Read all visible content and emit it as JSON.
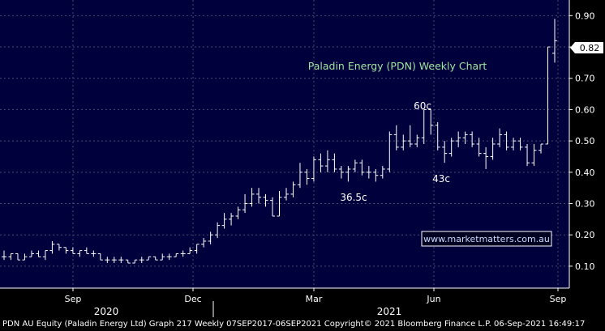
{
  "chart_data": {
    "type": "ohlc",
    "title": "Paladin Energy (PDN) Weekly Chart",
    "last_price_label": "0.82",
    "ylim": [
      0.03,
      0.95
    ],
    "y_ticks": [
      "0.10",
      "0.20",
      "0.30",
      "0.40",
      "0.50",
      "0.60",
      "0.70",
      "0.80",
      "0.90"
    ],
    "x_months": [
      "Sep",
      "Dec",
      "Mar",
      "Jun",
      "Sep"
    ],
    "x_years": [
      "2020",
      "2021"
    ],
    "annotations": [
      "60c",
      "43c",
      "36.5c"
    ],
    "watermark": "www.marketmatters.com.au",
    "colors": {
      "background": "#000000",
      "plot": "#00003c",
      "bars": "#ffffff",
      "grid": "#4a4a6e",
      "title": "#9fe89f",
      "watermark": "#c8d8ff"
    },
    "series": [
      {
        "o": 0.13,
        "h": 0.15,
        "l": 0.12,
        "c": 0.13
      },
      {
        "o": 0.13,
        "h": 0.14,
        "l": 0.12,
        "c": 0.14
      },
      {
        "o": 0.14,
        "h": 0.14,
        "l": 0.12,
        "c": 0.12
      },
      {
        "o": 0.12,
        "h": 0.14,
        "l": 0.12,
        "c": 0.13
      },
      {
        "o": 0.13,
        "h": 0.15,
        "l": 0.13,
        "c": 0.14
      },
      {
        "o": 0.14,
        "h": 0.15,
        "l": 0.13,
        "c": 0.13
      },
      {
        "o": 0.13,
        "h": 0.15,
        "l": 0.12,
        "c": 0.15
      },
      {
        "o": 0.15,
        "h": 0.18,
        "l": 0.14,
        "c": 0.17
      },
      {
        "o": 0.17,
        "h": 0.17,
        "l": 0.15,
        "c": 0.16
      },
      {
        "o": 0.16,
        "h": 0.16,
        "l": 0.14,
        "c": 0.15
      },
      {
        "o": 0.15,
        "h": 0.16,
        "l": 0.14,
        "c": 0.14
      },
      {
        "o": 0.14,
        "h": 0.15,
        "l": 0.13,
        "c": 0.15
      },
      {
        "o": 0.15,
        "h": 0.16,
        "l": 0.14,
        "c": 0.14
      },
      {
        "o": 0.14,
        "h": 0.15,
        "l": 0.13,
        "c": 0.14
      },
      {
        "o": 0.14,
        "h": 0.14,
        "l": 0.12,
        "c": 0.12
      },
      {
        "o": 0.12,
        "h": 0.13,
        "l": 0.11,
        "c": 0.12
      },
      {
        "o": 0.12,
        "h": 0.13,
        "l": 0.11,
        "c": 0.12
      },
      {
        "o": 0.12,
        "h": 0.13,
        "l": 0.11,
        "c": 0.12
      },
      {
        "o": 0.12,
        "h": 0.12,
        "l": 0.11,
        "c": 0.11
      },
      {
        "o": 0.11,
        "h": 0.12,
        "l": 0.11,
        "c": 0.12
      },
      {
        "o": 0.12,
        "h": 0.13,
        "l": 0.11,
        "c": 0.12
      },
      {
        "o": 0.12,
        "h": 0.13,
        "l": 0.12,
        "c": 0.13
      },
      {
        "o": 0.13,
        "h": 0.13,
        "l": 0.12,
        "c": 0.12
      },
      {
        "o": 0.12,
        "h": 0.14,
        "l": 0.12,
        "c": 0.13
      },
      {
        "o": 0.13,
        "h": 0.14,
        "l": 0.12,
        "c": 0.13
      },
      {
        "o": 0.13,
        "h": 0.14,
        "l": 0.13,
        "c": 0.14
      },
      {
        "o": 0.14,
        "h": 0.15,
        "l": 0.13,
        "c": 0.14
      },
      {
        "o": 0.14,
        "h": 0.16,
        "l": 0.14,
        "c": 0.15
      },
      {
        "o": 0.15,
        "h": 0.17,
        "l": 0.14,
        "c": 0.17
      },
      {
        "o": 0.17,
        "h": 0.19,
        "l": 0.16,
        "c": 0.18
      },
      {
        "o": 0.18,
        "h": 0.21,
        "l": 0.17,
        "c": 0.2
      },
      {
        "o": 0.2,
        "h": 0.24,
        "l": 0.19,
        "c": 0.23
      },
      {
        "o": 0.23,
        "h": 0.27,
        "l": 0.22,
        "c": 0.25
      },
      {
        "o": 0.25,
        "h": 0.27,
        "l": 0.23,
        "c": 0.26
      },
      {
        "o": 0.26,
        "h": 0.29,
        "l": 0.25,
        "c": 0.28
      },
      {
        "o": 0.28,
        "h": 0.33,
        "l": 0.27,
        "c": 0.3
      },
      {
        "o": 0.3,
        "h": 0.35,
        "l": 0.29,
        "c": 0.33
      },
      {
        "o": 0.33,
        "h": 0.35,
        "l": 0.3,
        "c": 0.32
      },
      {
        "o": 0.32,
        "h": 0.33,
        "l": 0.29,
        "c": 0.31
      },
      {
        "o": 0.31,
        "h": 0.32,
        "l": 0.26,
        "c": 0.26
      },
      {
        "o": 0.26,
        "h": 0.34,
        "l": 0.26,
        "c": 0.32
      },
      {
        "o": 0.32,
        "h": 0.35,
        "l": 0.31,
        "c": 0.33
      },
      {
        "o": 0.33,
        "h": 0.37,
        "l": 0.32,
        "c": 0.36
      },
      {
        "o": 0.36,
        "h": 0.43,
        "l": 0.35,
        "c": 0.4
      },
      {
        "o": 0.4,
        "h": 0.41,
        "l": 0.36,
        "c": 0.38
      },
      {
        "o": 0.38,
        "h": 0.45,
        "l": 0.37,
        "c": 0.44
      },
      {
        "o": 0.44,
        "h": 0.46,
        "l": 0.4,
        "c": 0.42
      },
      {
        "o": 0.42,
        "h": 0.47,
        "l": 0.4,
        "c": 0.44
      },
      {
        "o": 0.44,
        "h": 0.46,
        "l": 0.4,
        "c": 0.41
      },
      {
        "o": 0.41,
        "h": 0.42,
        "l": 0.38,
        "c": 0.4
      },
      {
        "o": 0.4,
        "h": 0.42,
        "l": 0.37,
        "c": 0.41
      },
      {
        "o": 0.41,
        "h": 0.44,
        "l": 0.4,
        "c": 0.43
      },
      {
        "o": 0.43,
        "h": 0.44,
        "l": 0.39,
        "c": 0.4
      },
      {
        "o": 0.4,
        "h": 0.42,
        "l": 0.38,
        "c": 0.4
      },
      {
        "o": 0.4,
        "h": 0.41,
        "l": 0.37,
        "c": 0.39
      },
      {
        "o": 0.39,
        "h": 0.42,
        "l": 0.38,
        "c": 0.41
      },
      {
        "o": 0.41,
        "h": 0.53,
        "l": 0.4,
        "c": 0.52
      },
      {
        "o": 0.52,
        "h": 0.55,
        "l": 0.47,
        "c": 0.48
      },
      {
        "o": 0.48,
        "h": 0.52,
        "l": 0.47,
        "c": 0.5
      },
      {
        "o": 0.5,
        "h": 0.55,
        "l": 0.48,
        "c": 0.49
      },
      {
        "o": 0.49,
        "h": 0.52,
        "l": 0.48,
        "c": 0.51
      },
      {
        "o": 0.51,
        "h": 0.6,
        "l": 0.49,
        "c": 0.6
      },
      {
        "o": 0.6,
        "h": 0.6,
        "l": 0.52,
        "c": 0.55
      },
      {
        "o": 0.55,
        "h": 0.56,
        "l": 0.47,
        "c": 0.48
      },
      {
        "o": 0.48,
        "h": 0.5,
        "l": 0.43,
        "c": 0.46
      },
      {
        "o": 0.46,
        "h": 0.51,
        "l": 0.45,
        "c": 0.5
      },
      {
        "o": 0.5,
        "h": 0.53,
        "l": 0.48,
        "c": 0.51
      },
      {
        "o": 0.51,
        "h": 0.53,
        "l": 0.49,
        "c": 0.52
      },
      {
        "o": 0.52,
        "h": 0.53,
        "l": 0.48,
        "c": 0.49
      },
      {
        "o": 0.49,
        "h": 0.51,
        "l": 0.45,
        "c": 0.46
      },
      {
        "o": 0.46,
        "h": 0.48,
        "l": 0.41,
        "c": 0.45
      },
      {
        "o": 0.45,
        "h": 0.51,
        "l": 0.44,
        "c": 0.49
      },
      {
        "o": 0.49,
        "h": 0.54,
        "l": 0.48,
        "c": 0.52
      },
      {
        "o": 0.52,
        "h": 0.53,
        "l": 0.47,
        "c": 0.48
      },
      {
        "o": 0.48,
        "h": 0.51,
        "l": 0.47,
        "c": 0.5
      },
      {
        "o": 0.5,
        "h": 0.51,
        "l": 0.47,
        "c": 0.48
      },
      {
        "o": 0.48,
        "h": 0.49,
        "l": 0.42,
        "c": 0.43
      },
      {
        "o": 0.43,
        "h": 0.49,
        "l": 0.42,
        "c": 0.47
      },
      {
        "o": 0.47,
        "h": 0.49,
        "l": 0.46,
        "c": 0.49
      },
      {
        "o": 0.49,
        "h": 0.8,
        "l": 0.49,
        "c": 0.8
      },
      {
        "o": 0.78,
        "h": 0.89,
        "l": 0.75,
        "c": 0.82
      }
    ]
  },
  "footer": {
    "text": "PDN AU Equity (Paladin Energy Ltd) Graph 217  Weekly 07SEP2017-06SEP2021 Copyright© 2021 Bloomberg Finance L.P.  06-Sep-2021 16:49:17"
  }
}
